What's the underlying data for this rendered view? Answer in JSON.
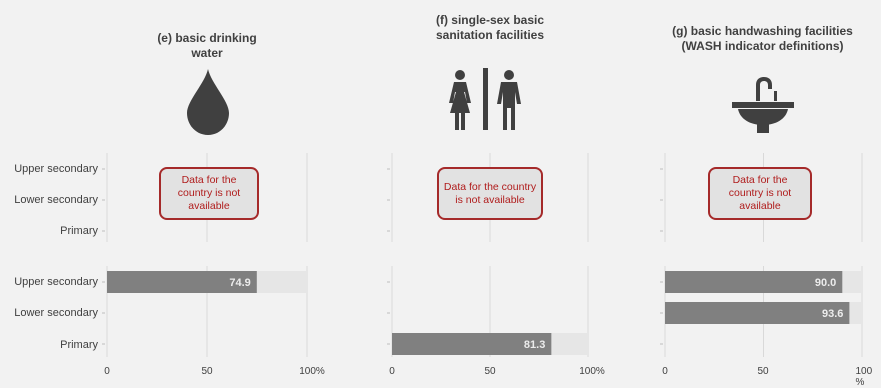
{
  "panels": [
    {
      "id": "e",
      "title": "(e) basic drinking water"
    },
    {
      "id": "f",
      "title": "(f) single-sex basic sanitation facilities"
    },
    {
      "id": "g",
      "title": "(g) basic handwashing facilities (WASH indicator definitions)"
    }
  ],
  "not_available_text": "Data for the country is not available",
  "row_labels": [
    "Upper secondary",
    "Lower secondary",
    "Primary"
  ],
  "icons": [
    "water-drop-icon",
    "restroom-icon",
    "sink-icon"
  ],
  "chart_data": [
    {
      "type": "bar",
      "title": "(e) basic drinking water",
      "categories": [
        "Upper secondary",
        "Lower secondary",
        "Primary"
      ],
      "values": [
        74.9,
        null,
        null
      ],
      "xlim": [
        0,
        100
      ],
      "xticks": [
        "0",
        "50",
        "100%"
      ],
      "top_block": "Data for the country is not available"
    },
    {
      "type": "bar",
      "title": "(f) single-sex basic sanitation facilities",
      "categories": [
        "Upper secondary",
        "Lower secondary",
        "Primary"
      ],
      "values": [
        null,
        null,
        81.3
      ],
      "xlim": [
        0,
        100
      ],
      "xticks": [
        "0",
        "50",
        "100%"
      ],
      "top_block": "Data for the country is not available"
    },
    {
      "type": "bar",
      "title": "(g) basic handwashing facilities (WASH indicator definitions)",
      "categories": [
        "Upper secondary",
        "Lower secondary",
        "Primary"
      ],
      "values": [
        90.0,
        93.6,
        null
      ],
      "xlim": [
        0,
        100
      ],
      "xticks": [
        "0",
        "50",
        "100 %"
      ],
      "top_block": "Data for the country is not available"
    }
  ],
  "colors": {
    "bar": "#808080",
    "track": "#e6e6e6",
    "grid": "#d9d9d9",
    "value_text": "#ececec"
  }
}
